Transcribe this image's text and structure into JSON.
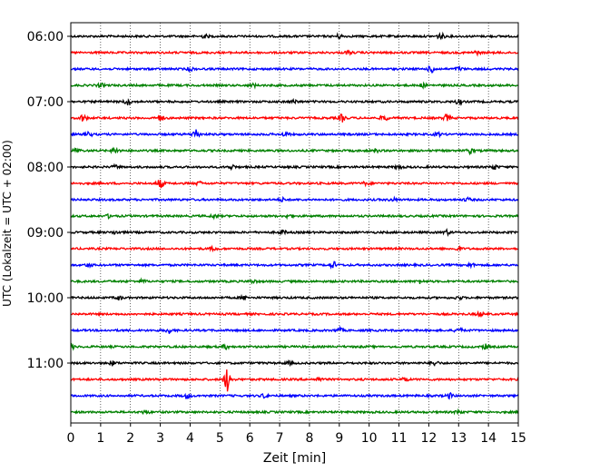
{
  "chart_data": {
    "type": "line",
    "title": "",
    "xlabel": "Zeit  [min]",
    "ylabel": "UTC (Lokalzeit = UTC + 02:00)",
    "xlim": [
      0,
      15
    ],
    "x_ticks": [
      "0",
      "1",
      "2",
      "3",
      "4",
      "5",
      "6",
      "7",
      "8",
      "9",
      "10",
      "11",
      "12",
      "13",
      "14",
      "15"
    ],
    "y_ticks": [
      "06:00",
      "07:00",
      "08:00",
      "09:00",
      "10:00",
      "11:00"
    ],
    "grid": "vertical dotted lines at each minute",
    "trace_colors": [
      "#000000",
      "#ff0000",
      "#0000ff",
      "#008000"
    ],
    "rows": [
      {
        "start": "06:00",
        "color": "#000000",
        "events": [
          [
            4.5,
            0.3
          ],
          [
            9.0,
            0.35
          ],
          [
            12.4,
            0.5
          ]
        ]
      },
      {
        "start": "06:15",
        "color": "#ff0000",
        "events": [
          [
            9.3,
            0.3
          ],
          [
            13.6,
            0.3
          ]
        ]
      },
      {
        "start": "06:30",
        "color": "#0000ff",
        "events": [
          [
            4.0,
            0.3
          ],
          [
            12.1,
            0.7
          ],
          [
            13.0,
            0.3
          ]
        ]
      },
      {
        "start": "06:45",
        "color": "#008000",
        "events": [
          [
            1.0,
            0.3
          ],
          [
            6.1,
            0.3
          ],
          [
            11.8,
            0.3
          ]
        ]
      },
      {
        "start": "07:00",
        "color": "#000000",
        "events": [
          [
            1.9,
            0.5
          ],
          [
            7.5,
            0.3
          ],
          [
            13.0,
            0.4
          ]
        ]
      },
      {
        "start": "07:15",
        "color": "#ff0000",
        "events": [
          [
            0.4,
            0.6
          ],
          [
            3.0,
            0.5
          ],
          [
            9.1,
            0.7
          ],
          [
            10.5,
            0.5
          ],
          [
            12.6,
            0.6
          ]
        ]
      },
      {
        "start": "07:30",
        "color": "#0000ff",
        "events": [
          [
            0.6,
            0.4
          ],
          [
            4.2,
            0.9
          ],
          [
            7.2,
            0.4
          ],
          [
            12.3,
            0.3
          ]
        ]
      },
      {
        "start": "07:45",
        "color": "#008000",
        "events": [
          [
            0.2,
            0.4
          ],
          [
            1.5,
            0.6
          ],
          [
            10.2,
            0.3
          ],
          [
            13.4,
            0.5
          ]
        ]
      },
      {
        "start": "08:00",
        "color": "#000000",
        "events": [
          [
            1.5,
            0.3
          ],
          [
            5.4,
            0.35
          ],
          [
            11.0,
            0.3
          ],
          [
            14.2,
            0.4
          ]
        ]
      },
      {
        "start": "08:15",
        "color": "#ff0000",
        "events": [
          [
            3.0,
            0.8
          ],
          [
            4.3,
            0.3
          ],
          [
            9.9,
            0.3
          ]
        ]
      },
      {
        "start": "08:30",
        "color": "#0000ff",
        "events": [
          [
            7.1,
            0.3
          ],
          [
            10.8,
            0.3
          ],
          [
            13.3,
            0.3
          ]
        ]
      },
      {
        "start": "08:45",
        "color": "#008000",
        "events": [
          [
            1.3,
            0.3
          ],
          [
            4.8,
            0.3
          ],
          [
            7.3,
            0.3
          ]
        ]
      },
      {
        "start": "09:00",
        "color": "#000000",
        "events": [
          [
            1.5,
            0.3
          ],
          [
            7.1,
            0.35
          ],
          [
            12.6,
            0.4
          ]
        ]
      },
      {
        "start": "09:15",
        "color": "#ff0000",
        "events": [
          [
            4.8,
            0.3
          ],
          [
            13.0,
            0.3
          ]
        ]
      },
      {
        "start": "09:30",
        "color": "#0000ff",
        "events": [
          [
            0.6,
            0.3
          ],
          [
            8.8,
            0.6
          ],
          [
            13.4,
            0.3
          ]
        ]
      },
      {
        "start": "09:45",
        "color": "#008000",
        "events": [
          [
            2.4,
            0.3
          ],
          [
            6.1,
            0.3
          ],
          [
            11.7,
            0.3
          ]
        ]
      },
      {
        "start": "10:00",
        "color": "#000000",
        "events": [
          [
            1.6,
            0.35
          ],
          [
            5.8,
            0.3
          ],
          [
            13.0,
            0.3
          ]
        ]
      },
      {
        "start": "10:15",
        "color": "#ff0000",
        "events": [
          [
            13.7,
            0.35
          ]
        ]
      },
      {
        "start": "10:30",
        "color": "#0000ff",
        "events": [
          [
            3.3,
            0.45
          ],
          [
            9.0,
            0.4
          ],
          [
            13.0,
            0.45
          ]
        ]
      },
      {
        "start": "10:45",
        "color": "#008000",
        "events": [
          [
            0.0,
            0.5
          ],
          [
            5.2,
            0.35
          ],
          [
            13.9,
            0.4
          ]
        ]
      },
      {
        "start": "11:00",
        "color": "#000000",
        "events": [
          [
            1.4,
            0.4
          ],
          [
            7.3,
            0.3
          ],
          [
            12.2,
            0.45
          ]
        ]
      },
      {
        "start": "11:15",
        "color": "#ff0000",
        "events": [
          [
            5.25,
            2.2
          ],
          [
            8.3,
            0.3
          ],
          [
            11.2,
            0.3
          ]
        ]
      },
      {
        "start": "11:30",
        "color": "#0000ff",
        "events": [
          [
            3.9,
            0.45
          ],
          [
            6.5,
            0.4
          ],
          [
            12.7,
            0.45
          ]
        ]
      },
      {
        "start": "11:45",
        "color": "#008000",
        "events": [
          [
            2.5,
            0.3
          ],
          [
            13.0,
            0.3
          ]
        ]
      }
    ]
  }
}
